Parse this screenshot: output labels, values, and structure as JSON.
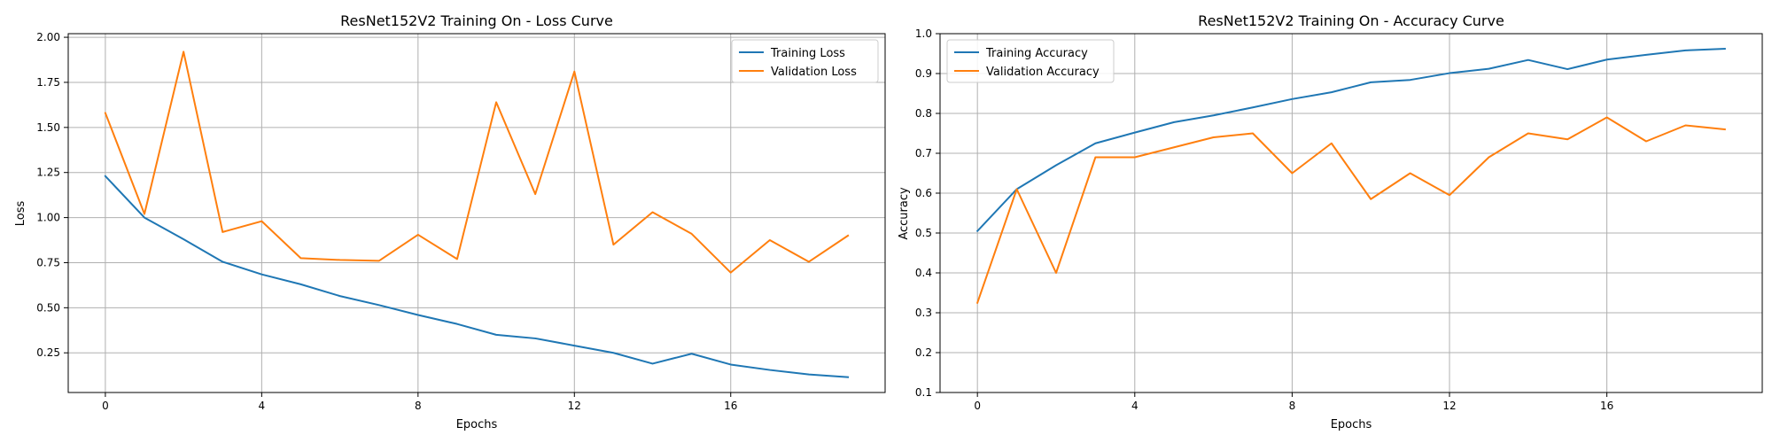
{
  "chart_data": [
    {
      "type": "line",
      "title": "ResNet152V2 Training On - Loss Curve",
      "xlabel": "Epochs",
      "ylabel": "Loss",
      "xlim": [
        -0.95,
        19.95
      ],
      "ylim": [
        0.03,
        2.02
      ],
      "xticks": [
        0,
        4,
        8,
        12,
        16
      ],
      "xtick_labels": [
        "0",
        "4",
        "8",
        "12",
        "16"
      ],
      "yticks": [
        0.25,
        0.5,
        0.75,
        1.0,
        1.25,
        1.5,
        1.75,
        2.0
      ],
      "ytick_labels": [
        "0.25",
        "0.50",
        "0.75",
        "1.00",
        "1.25",
        "1.50",
        "1.75",
        "2.00"
      ],
      "grid": true,
      "legend": "top-right",
      "x": [
        0,
        1,
        2,
        3,
        4,
        5,
        6,
        7,
        8,
        9,
        10,
        11,
        12,
        13,
        14,
        15,
        16,
        17,
        18,
        19
      ],
      "series": [
        {
          "name": "Training Loss",
          "color": "#1f77b4",
          "values": [
            1.23,
            1.0,
            0.88,
            0.755,
            0.685,
            0.63,
            0.565,
            0.515,
            0.46,
            0.41,
            0.35,
            0.33,
            0.29,
            0.25,
            0.19,
            0.245,
            0.185,
            0.155,
            0.13,
            0.115
          ]
        },
        {
          "name": "Validation Loss",
          "color": "#ff7f0e",
          "values": [
            1.58,
            1.02,
            1.92,
            0.92,
            0.98,
            0.775,
            0.765,
            0.76,
            0.905,
            0.77,
            1.64,
            1.13,
            1.81,
            0.85,
            1.03,
            0.91,
            0.695,
            0.875,
            0.755,
            0.9
          ]
        }
      ]
    },
    {
      "type": "line",
      "title": "ResNet152V2 Training On - Accuracy Curve",
      "xlabel": "Epochs",
      "ylabel": "Accuracy",
      "xlim": [
        -0.95,
        19.95
      ],
      "ylim": [
        0.1,
        1.0
      ],
      "xticks": [
        0,
        4,
        8,
        12,
        16
      ],
      "xtick_labels": [
        "0",
        "4",
        "8",
        "12",
        "16"
      ],
      "yticks": [
        0.1,
        0.2,
        0.3,
        0.4,
        0.5,
        0.6,
        0.7,
        0.8,
        0.9,
        1.0
      ],
      "ytick_labels": [
        "0.1",
        "0.2",
        "0.3",
        "0.4",
        "0.5",
        "0.6",
        "0.7",
        "0.8",
        "0.9",
        "1.0"
      ],
      "grid": true,
      "legend": "top-left",
      "x": [
        0,
        1,
        2,
        3,
        4,
        5,
        6,
        7,
        8,
        9,
        10,
        11,
        12,
        13,
        14,
        15,
        16,
        17,
        18,
        19
      ],
      "series": [
        {
          "name": "Training Accuracy",
          "color": "#1f77b4",
          "values": [
            0.505,
            0.61,
            0.67,
            0.725,
            0.752,
            0.778,
            0.795,
            0.815,
            0.836,
            0.853,
            0.878,
            0.884,
            0.901,
            0.912,
            0.934,
            0.911,
            0.935,
            0.947,
            0.958,
            0.962
          ]
        },
        {
          "name": "Validation Accuracy",
          "color": "#ff7f0e",
          "values": [
            0.325,
            0.61,
            0.4,
            0.69,
            0.69,
            0.715,
            0.74,
            0.75,
            0.65,
            0.725,
            0.585,
            0.65,
            0.595,
            0.69,
            0.75,
            0.735,
            0.79,
            0.73,
            0.77,
            0.76
          ]
        }
      ]
    }
  ]
}
